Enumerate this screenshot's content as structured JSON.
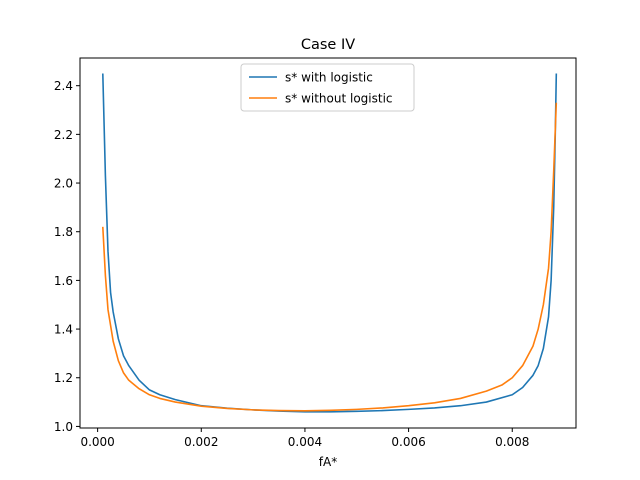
{
  "chart_data": {
    "type": "line",
    "title": "Case IV",
    "xlabel": "fA*",
    "ylabel": "",
    "xlim": [
      -0.00034,
      0.00923
    ],
    "ylim": [
      0.9935,
      2.5138
    ],
    "xticks": [
      0.0,
      0.002,
      0.004,
      0.006,
      0.008
    ],
    "xtick_labels": [
      "0.000",
      "0.002",
      "0.004",
      "0.006",
      "0.008"
    ],
    "yticks": [
      1.0,
      1.2,
      1.4,
      1.6,
      1.8,
      2.0,
      2.2,
      2.4
    ],
    "ytick_labels": [
      "1.0",
      "1.2",
      "1.4",
      "1.6",
      "1.8",
      "2.0",
      "2.2",
      "2.4"
    ],
    "grid": false,
    "legend_position": "top-center",
    "series": [
      {
        "name": "s* with logistic",
        "color": "#1f77b4",
        "points": [
          [
            0.0001,
            2.45
          ],
          [
            0.00015,
            2.03
          ],
          [
            0.0002,
            1.72
          ],
          [
            0.00025,
            1.55
          ],
          [
            0.0003,
            1.47
          ],
          [
            0.0004,
            1.36
          ],
          [
            0.0005,
            1.29
          ],
          [
            0.0006,
            1.25
          ],
          [
            0.0008,
            1.19
          ],
          [
            0.001,
            1.15
          ],
          [
            0.0012,
            1.13
          ],
          [
            0.0015,
            1.11
          ],
          [
            0.002,
            1.085
          ],
          [
            0.0025,
            1.075
          ],
          [
            0.003,
            1.068
          ],
          [
            0.0035,
            1.063
          ],
          [
            0.004,
            1.06
          ],
          [
            0.0045,
            1.06
          ],
          [
            0.005,
            1.062
          ],
          [
            0.0055,
            1.065
          ],
          [
            0.006,
            1.07
          ],
          [
            0.0065,
            1.076
          ],
          [
            0.007,
            1.085
          ],
          [
            0.0075,
            1.1
          ],
          [
            0.008,
            1.13
          ],
          [
            0.0082,
            1.16
          ],
          [
            0.0084,
            1.21
          ],
          [
            0.0085,
            1.25
          ],
          [
            0.0086,
            1.32
          ],
          [
            0.0087,
            1.45
          ],
          [
            0.00875,
            1.6
          ],
          [
            0.0088,
            1.9
          ],
          [
            0.00883,
            2.2
          ],
          [
            0.00885,
            2.45
          ]
        ]
      },
      {
        "name": "s* without logistic",
        "color": "#ff7f0e",
        "points": [
          [
            0.0001,
            1.82
          ],
          [
            0.00015,
            1.62
          ],
          [
            0.0002,
            1.48
          ],
          [
            0.0003,
            1.35
          ],
          [
            0.0004,
            1.27
          ],
          [
            0.0005,
            1.22
          ],
          [
            0.0006,
            1.19
          ],
          [
            0.0008,
            1.155
          ],
          [
            0.001,
            1.13
          ],
          [
            0.0012,
            1.115
          ],
          [
            0.0015,
            1.1
          ],
          [
            0.002,
            1.083
          ],
          [
            0.0025,
            1.074
          ],
          [
            0.003,
            1.068
          ],
          [
            0.0035,
            1.065
          ],
          [
            0.004,
            1.064
          ],
          [
            0.0045,
            1.066
          ],
          [
            0.005,
            1.07
          ],
          [
            0.0055,
            1.076
          ],
          [
            0.006,
            1.085
          ],
          [
            0.0065,
            1.097
          ],
          [
            0.007,
            1.115
          ],
          [
            0.0075,
            1.145
          ],
          [
            0.0078,
            1.17
          ],
          [
            0.008,
            1.2
          ],
          [
            0.0082,
            1.25
          ],
          [
            0.0084,
            1.33
          ],
          [
            0.0085,
            1.4
          ],
          [
            0.0086,
            1.5
          ],
          [
            0.0087,
            1.65
          ],
          [
            0.00875,
            1.8
          ],
          [
            0.0088,
            2.05
          ],
          [
            0.00885,
            2.33
          ]
        ]
      }
    ]
  }
}
